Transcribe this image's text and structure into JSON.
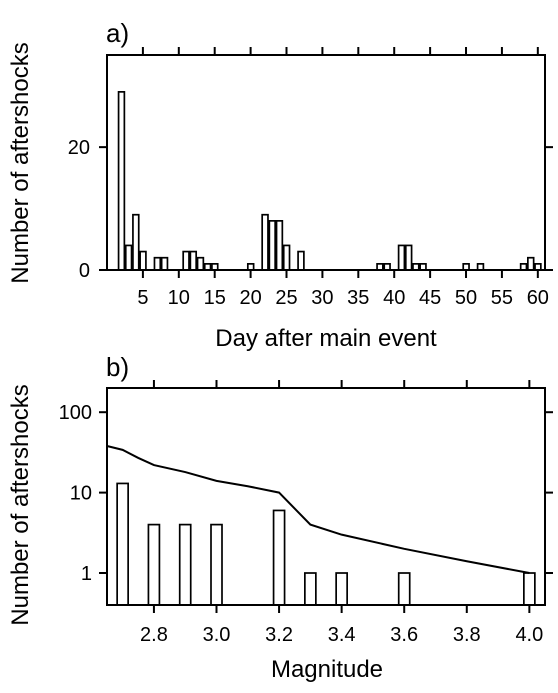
{
  "chart_data": [
    {
      "type": "bar",
      "panel_label": "a)",
      "xlabel": "Day after main event",
      "ylabel": "Number of aftershocks",
      "xlim": [
        0,
        61
      ],
      "ylim": [
        0,
        35
      ],
      "xticks": [
        5,
        10,
        15,
        20,
        25,
        30,
        35,
        40,
        45,
        50,
        55,
        60
      ],
      "yticks": [
        0,
        20
      ],
      "x": [
        2,
        3,
        4,
        5,
        7,
        8,
        11,
        12,
        13,
        14,
        15,
        20,
        22,
        23,
        24,
        25,
        27,
        38,
        39,
        41,
        42,
        43,
        44,
        50,
        52,
        58,
        59,
        60
      ],
      "values": [
        29,
        4,
        9,
        3,
        2,
        2,
        3,
        3,
        2,
        1,
        1,
        1,
        9,
        8,
        8,
        4,
        3,
        1,
        1,
        4,
        4,
        1,
        1,
        1,
        1,
        1,
        2,
        1
      ]
    },
    {
      "type": "bar",
      "panel_label": "b)",
      "xlabel": "Magnitude",
      "ylabel": "Number of aftershocks",
      "xlim": [
        2.65,
        4.05
      ],
      "ylim": [
        0.4,
        200
      ],
      "log_y": true,
      "xticks": [
        2.8,
        3.0,
        3.2,
        3.4,
        3.6,
        3.8,
        4.0
      ],
      "yticks": [
        1,
        10,
        100
      ],
      "bars": {
        "x": [
          2.7,
          2.8,
          2.9,
          3.0,
          3.2,
          3.3,
          3.4,
          3.6,
          4.0
        ],
        "values": [
          13,
          4,
          4,
          4,
          6,
          1,
          1,
          1,
          1
        ]
      },
      "line": {
        "x": [
          2.65,
          2.7,
          2.75,
          2.8,
          2.9,
          3.0,
          3.1,
          3.2,
          3.3,
          3.4,
          3.6,
          3.8,
          4.0
        ],
        "values": [
          38,
          34,
          27,
          22,
          18,
          14,
          12,
          10,
          4,
          3,
          2,
          1.4,
          1
        ]
      }
    }
  ]
}
